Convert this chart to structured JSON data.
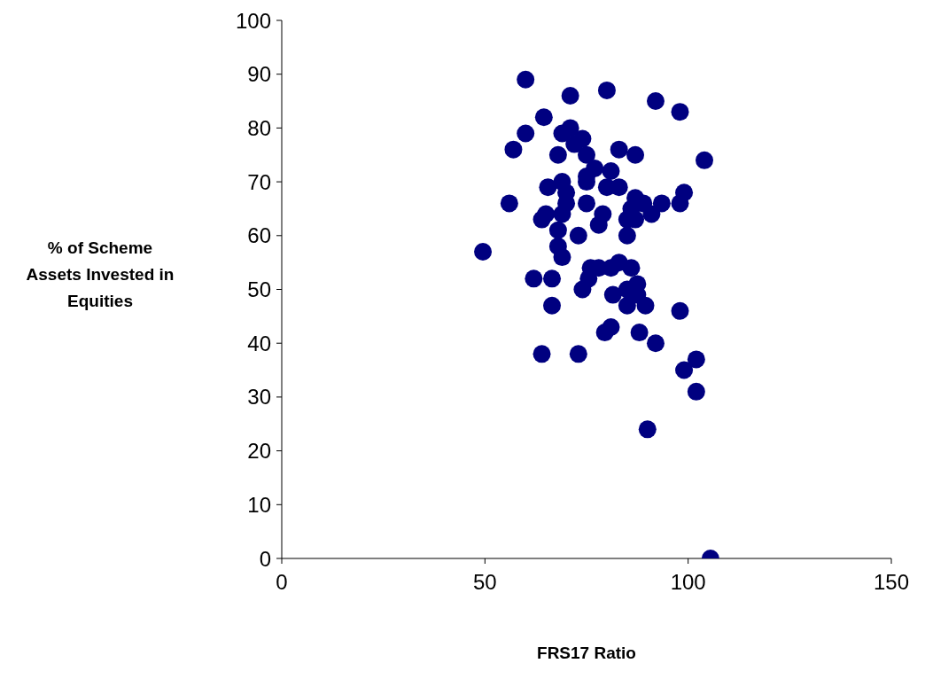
{
  "chart_data": {
    "type": "scatter",
    "xlabel": "FRS17 Ratio",
    "ylabel": "% of Scheme Assets Invested in Equities",
    "xlim": [
      0,
      150
    ],
    "xticks": [
      0,
      50,
      100,
      150
    ],
    "ylim": [
      0,
      100
    ],
    "yticks": [
      0,
      10,
      20,
      30,
      40,
      50,
      60,
      70,
      80,
      90,
      100
    ],
    "grid": false,
    "marker": "circle",
    "series": [
      {
        "color": "#000080",
        "x": [
          60,
          71,
          80,
          92,
          98,
          64.5,
          60,
          69,
          71,
          74,
          72,
          57,
          68,
          75,
          83,
          87,
          104,
          75,
          77,
          81,
          65.5,
          69,
          70,
          70,
          75,
          75,
          80,
          83,
          87,
          89,
          91,
          93.5,
          99,
          98,
          86,
          85,
          87,
          85,
          56,
          65,
          64,
          69,
          68,
          73,
          79,
          78,
          68,
          49.5,
          69,
          62,
          66.5,
          66.5,
          76,
          78,
          75.5,
          74,
          83,
          86,
          81,
          81.5,
          85,
          87.5,
          87.5,
          85,
          89.5,
          98,
          81,
          79.5,
          88,
          92,
          64,
          73,
          102,
          99,
          102,
          90,
          105.5
        ],
        "values": [
          89,
          86,
          87,
          85,
          83,
          82,
          79,
          79,
          80,
          78,
          77,
          76,
          75,
          75,
          76,
          75,
          74,
          71,
          72.5,
          72,
          69,
          70,
          68,
          66,
          70,
          66,
          69,
          69,
          67,
          66,
          64,
          66,
          68,
          66,
          65,
          63,
          63,
          60,
          66,
          64,
          63,
          64,
          61,
          60,
          64,
          62,
          58,
          57,
          56,
          52,
          52,
          47,
          54,
          54,
          52,
          50,
          55,
          54,
          54,
          49,
          50,
          51,
          49,
          47,
          47,
          46,
          43,
          42,
          42,
          40,
          38,
          38,
          37,
          35,
          31,
          24,
          0
        ]
      }
    ]
  }
}
